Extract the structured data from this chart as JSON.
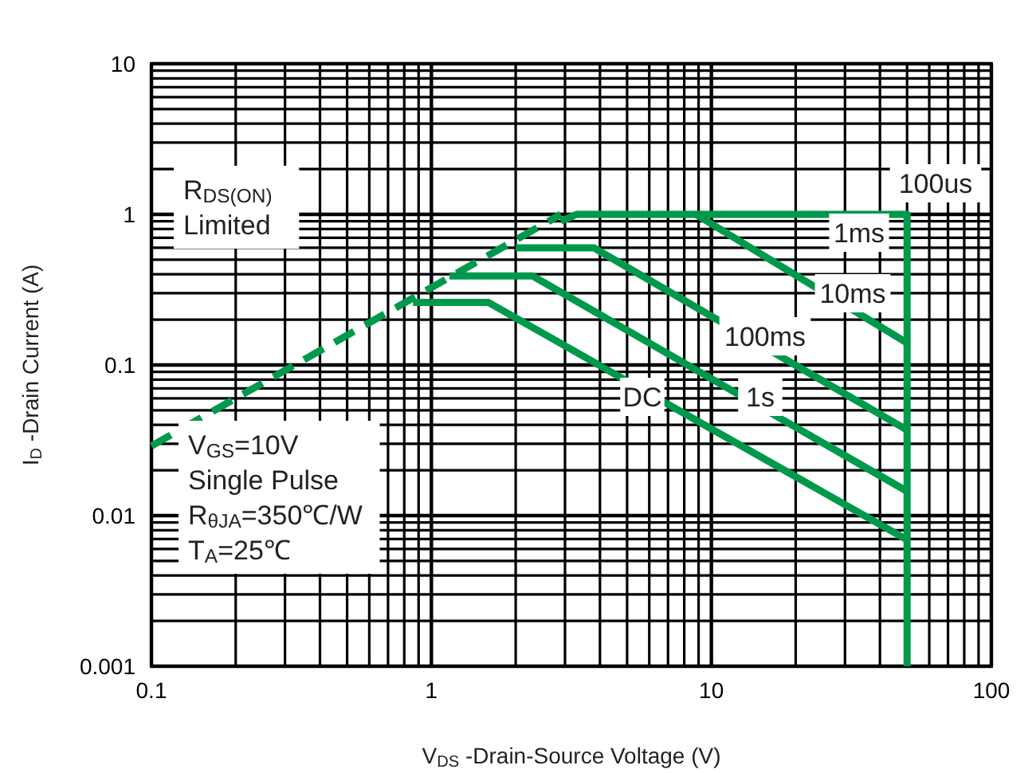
{
  "chart_data": {
    "type": "line",
    "xlabel": "V$_{DS}$ -Drain-Source Voltage (V)",
    "ylabel": "I$_{D}$ -Drain Current (A)",
    "log": "xy",
    "grid": true,
    "xlim": [
      0.1,
      100
    ],
    "ylim": [
      0.001,
      10
    ],
    "xticks": [
      0.1,
      {
        "value": 0.2,
        "label": null
      },
      {
        "value": 0.3,
        "label": null
      },
      {
        "value": 0.4,
        "label": null
      },
      {
        "value": 0.5,
        "label": null
      },
      {
        "value": 0.6,
        "label": null
      },
      {
        "value": 0.7,
        "label": null
      },
      {
        "value": 0.8,
        "label": null
      },
      {
        "value": 0.9,
        "label": null
      },
      1,
      {
        "value": 2,
        "label": null
      },
      {
        "value": 3,
        "label": null
      },
      {
        "value": 4,
        "label": null
      },
      {
        "value": 5,
        "label": null
      },
      {
        "value": 6,
        "label": null
      },
      {
        "value": 7,
        "label": null
      },
      {
        "value": 8,
        "label": null
      },
      {
        "value": 9,
        "label": null
      },
      10,
      {
        "value": 20,
        "label": null
      },
      {
        "value": 30,
        "label": null
      },
      {
        "value": 40,
        "label": null
      },
      {
        "value": 50,
        "label": null
      },
      {
        "value": 60,
        "label": null
      },
      {
        "value": 70,
        "label": null
      },
      {
        "value": 80,
        "label": null
      },
      {
        "value": 90,
        "label": null
      },
      100
    ],
    "yticks": [
      0.001,
      {
        "value": 0.002,
        "label": null
      },
      {
        "value": 0.003,
        "label": null
      },
      {
        "value": 0.004,
        "label": null
      },
      {
        "value": 0.005,
        "label": null
      },
      {
        "value": 0.006,
        "label": null
      },
      {
        "value": 0.007,
        "label": null
      },
      {
        "value": 0.008,
        "label": null
      },
      {
        "value": 0.009,
        "label": null
      },
      0.01,
      {
        "value": 0.02,
        "label": null
      },
      {
        "value": 0.03,
        "label": null
      },
      {
        "value": 0.04,
        "label": null
      },
      {
        "value": 0.05,
        "label": null
      },
      {
        "value": 0.06,
        "label": null
      },
      {
        "value": 0.07,
        "label": null
      },
      {
        "value": 0.08,
        "label": null
      },
      {
        "value": 0.09,
        "label": null
      },
      0.1,
      {
        "value": 0.2,
        "label": null
      },
      {
        "value": 0.3,
        "label": null
      },
      {
        "value": 0.4,
        "label": null
      },
      {
        "value": 0.5,
        "label": null
      },
      {
        "value": 0.6,
        "label": null
      },
      {
        "value": 0.7,
        "label": null
      },
      {
        "value": 0.8,
        "label": null
      },
      {
        "value": 0.9,
        "label": null
      },
      1,
      {
        "value": 2,
        "label": null
      },
      {
        "value": 3,
        "label": null
      },
      {
        "value": 4,
        "label": null
      },
      {
        "value": 5,
        "label": null
      },
      {
        "value": 6,
        "label": null
      },
      {
        "value": 7,
        "label": null
      },
      {
        "value": 8,
        "label": null
      },
      {
        "value": 9,
        "label": null
      },
      10
    ],
    "series": [
      {
        "color": "#00994c",
        "line_style": "dashed",
        "x": [
          0.1,
          2.9
        ],
        "values": [
          0.029,
          1
        ]
      },
      {
        "color": "#00994c",
        "x": [
          2.9,
          3.3,
          50,
          50
        ],
        "values": [
          0.9,
          1,
          1,
          0.001
        ]
      },
      {
        "color": "#00994c",
        "x": [
          8.8,
          50
        ],
        "values": [
          1,
          0.14
        ]
      },
      {
        "color": "#00994c",
        "x": [
          2.0,
          3.8,
          50
        ],
        "values": [
          0.6,
          0.6,
          0.037
        ]
      },
      {
        "color": "#00994c",
        "x": [
          1.16,
          2.3,
          50
        ],
        "values": [
          0.39,
          0.39,
          0.0145
        ]
      },
      {
        "color": "#00994c",
        "x": [
          0.86,
          1.6,
          50
        ],
        "values": [
          0.26,
          0.26,
          0.0069
        ]
      }
    ],
    "annotations": [
      "R$_{DS(ON)}$\nLimited",
      "V$_{GS}$=10V\nSingle Pulse\nR$_{θJA}$=350℃/W\nT$_{A}$=25℃",
      "100us",
      "1ms",
      "10ms",
      "100ms",
      "DC",
      "1s"
    ]
  }
}
